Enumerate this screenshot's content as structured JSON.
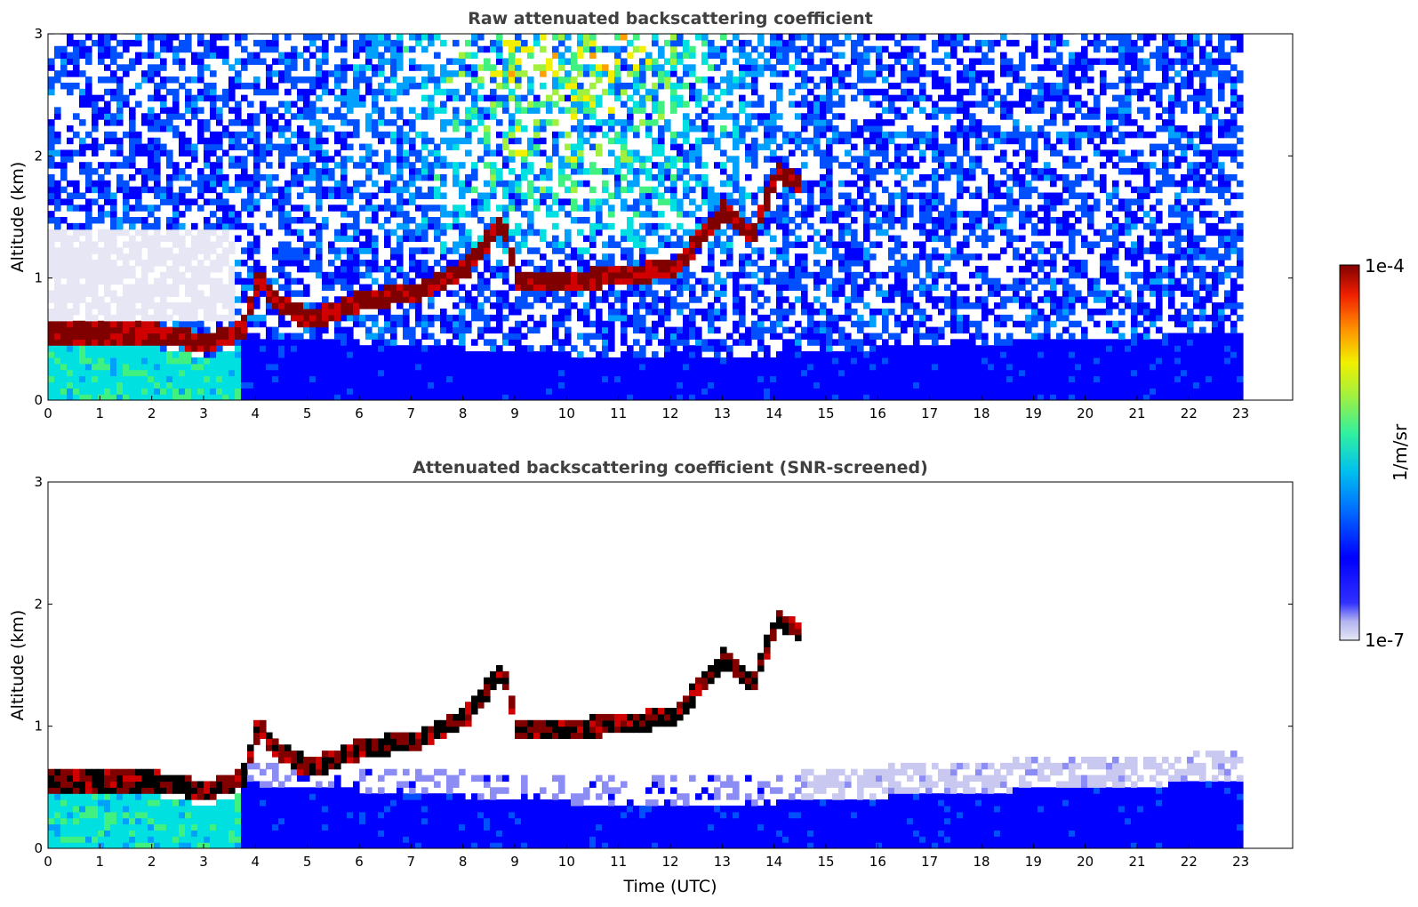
{
  "chart_data": [
    {
      "type": "heatmap",
      "title": "Raw attenuated backscattering coefficient",
      "xlabel": "",
      "ylabel": "Altitude (km)",
      "xlim": [
        0,
        24
      ],
      "ylim": [
        0,
        3
      ],
      "x_ticks": [
        "0",
        "1",
        "2",
        "3",
        "4",
        "5",
        "6",
        "7",
        "8",
        "9",
        "10",
        "11",
        "12",
        "13",
        "14",
        "15",
        "16",
        "17",
        "18",
        "19",
        "20",
        "21",
        "22",
        "23"
      ],
      "y_ticks": [
        "0",
        "1",
        "2",
        "3"
      ],
      "data_extent_hours": [
        0,
        23
      ],
      "features": {
        "boundary_layer_top_km": [
          {
            "t": 0,
            "z": 0.52
          },
          {
            "t": 1,
            "z": 0.52
          },
          {
            "t": 2,
            "z": 0.53
          },
          {
            "t": 3,
            "z": 0.45
          },
          {
            "t": 3.7,
            "z": 0.55
          },
          {
            "t": 4,
            "z": 0.98
          },
          {
            "t": 4.3,
            "z": 0.8
          },
          {
            "t": 5,
            "z": 0.63
          },
          {
            "t": 6,
            "z": 0.8
          },
          {
            "t": 7,
            "z": 0.85
          },
          {
            "t": 8,
            "z": 1.05
          },
          {
            "t": 8.7,
            "z": 1.45
          },
          {
            "t": 9,
            "z": 0.95
          },
          {
            "t": 10,
            "z": 0.95
          },
          {
            "t": 11,
            "z": 1.0
          },
          {
            "t": 12,
            "z": 1.05
          },
          {
            "t": 13,
            "z": 1.55
          },
          {
            "t": 13.5,
            "z": 1.3
          },
          {
            "t": 14,
            "z": 1.85
          },
          {
            "t": 14.4,
            "z": 1.75
          }
        ],
        "surface_aerosol_top_km": [
          {
            "t": 4,
            "z": 0.5
          },
          {
            "t": 10,
            "z": 0.35
          },
          {
            "t": 14,
            "z": 0.35
          },
          {
            "t": 17,
            "z": 0.42
          },
          {
            "t": 20,
            "z": 0.48
          },
          {
            "t": 23,
            "z": 0.52
          }
        ]
      }
    },
    {
      "type": "heatmap",
      "title": "Attenuated backscattering coefficient (SNR-screened)",
      "xlabel": "Time (UTC)",
      "ylabel": "Altitude (km)",
      "xlim": [
        0,
        24
      ],
      "ylim": [
        0,
        3
      ],
      "x_ticks": [
        "0",
        "1",
        "2",
        "3",
        "4",
        "5",
        "6",
        "7",
        "8",
        "9",
        "10",
        "11",
        "12",
        "13",
        "14",
        "15",
        "16",
        "17",
        "18",
        "19",
        "20",
        "21",
        "22",
        "23"
      ],
      "y_ticks": [
        "0",
        "1",
        "2",
        "3"
      ],
      "data_extent_hours": [
        0,
        23
      ]
    }
  ],
  "colorbar": {
    "label": "1/m/sr",
    "max_label": "1e-4",
    "min_label": "1e-7",
    "scale": "log",
    "colormap": [
      "#e6e6f5",
      "#c8c8f0",
      "#8c8cf5",
      "#0000ff",
      "#0050ff",
      "#00a0ff",
      "#00e0e0",
      "#40f080",
      "#a0f040",
      "#f0f000",
      "#ffa000",
      "#ff4000",
      "#d00000",
      "#800000"
    ]
  }
}
